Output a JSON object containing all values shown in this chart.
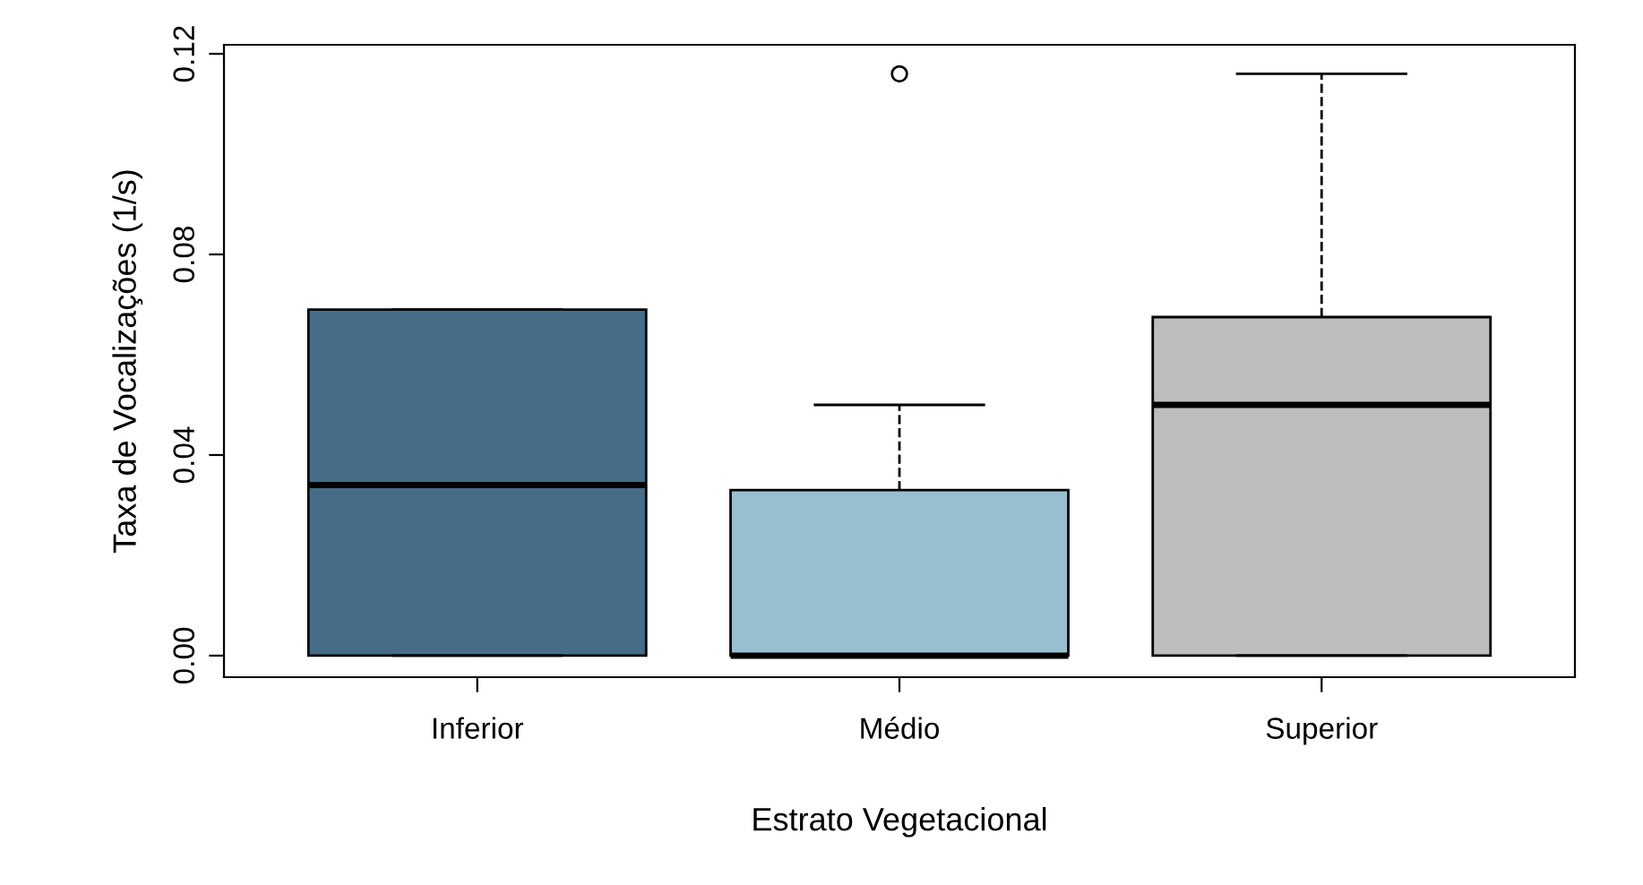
{
  "chart_data": {
    "type": "box",
    "xlabel": "Estrato Vegetacional",
    "ylabel": "Taxa de Vocalizações (1/s)",
    "categories": [
      "Inferior",
      "Médio",
      "Superior"
    ],
    "colors": [
      "#466d87",
      "#98bfcf",
      "#bebebe"
    ],
    "boxes": [
      {
        "low": 0.0,
        "q1": 0.0,
        "median": 0.034,
        "q3": 0.069,
        "high": 0.069
      },
      {
        "low": 0.0,
        "q1": 0.0,
        "median": 0.0,
        "q3": 0.033,
        "high": 0.05,
        "outliers": [
          0.116
        ]
      },
      {
        "low": 0.0,
        "q1": 0.0,
        "median": 0.05,
        "q3": 0.0675,
        "high": 0.116
      }
    ],
    "ylim": [
      -0.0043,
      0.1218
    ],
    "yticks": [
      {
        "value": 0,
        "label": "0.00"
      },
      {
        "value": 0.04,
        "label": "0.04"
      },
      {
        "value": 0.08,
        "label": "0.08"
      },
      {
        "value": 0.12,
        "label": "0.12"
      }
    ],
    "grid": false
  }
}
